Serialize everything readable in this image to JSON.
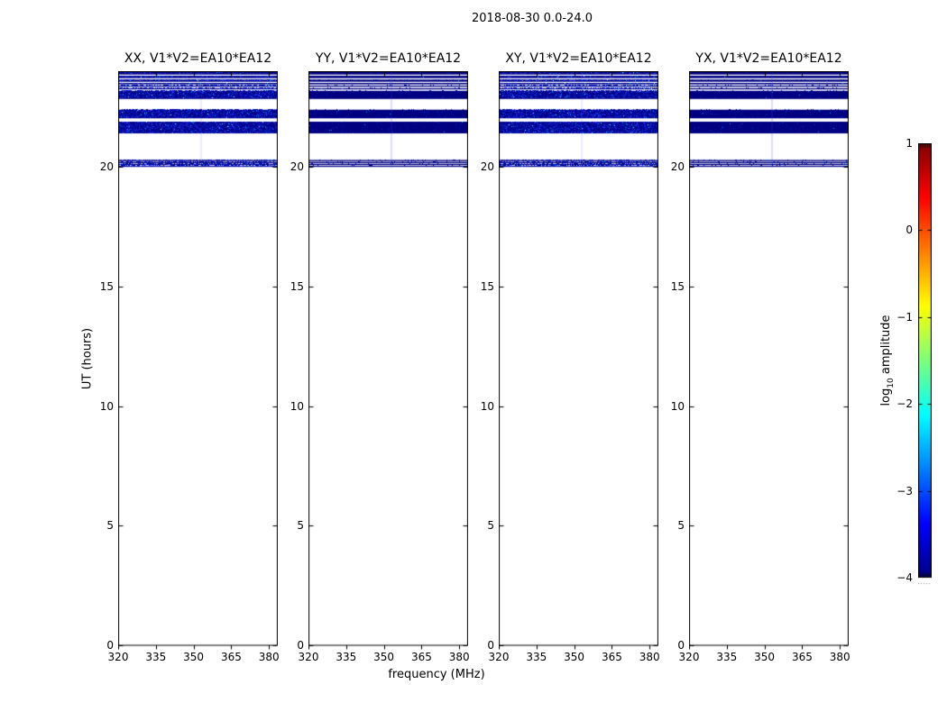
{
  "chart_data": {
    "type": "heatmap",
    "suptitle": "2018-08-30 0.0-24.0",
    "panels": [
      {
        "id": "XX",
        "title": "XX, V1*V2=EA10*EA12",
        "texture": "speckled"
      },
      {
        "id": "YY",
        "title": "YY, V1*V2=EA10*EA12",
        "texture": "solid"
      },
      {
        "id": "XY",
        "title": "XY, V1*V2=EA10*EA12",
        "texture": "speckled"
      },
      {
        "id": "YX",
        "title": "YX, V1*V2=EA10*EA12",
        "texture": "solid"
      }
    ],
    "xlabel": "frequency (MHz)",
    "ylabel": "UT (hours)",
    "x_range": [
      320,
      383.5
    ],
    "x_ticks": [
      320,
      335,
      350,
      365,
      380
    ],
    "x_tick_labels": [
      "320",
      "335",
      "350",
      "365",
      "380"
    ],
    "y_range": [
      0,
      24
    ],
    "y_ticks": [
      0,
      5,
      10,
      15,
      20
    ],
    "y_tick_labels": [
      "0",
      "5",
      "10",
      "15",
      "20"
    ],
    "grid": false,
    "legend": "colorbar-right",
    "bands_ut": [
      [
        23.86,
        24.0
      ],
      [
        23.71,
        23.81
      ],
      [
        23.56,
        23.65
      ],
      [
        23.45,
        23.51
      ],
      [
        23.35,
        23.4
      ],
      [
        23.24,
        23.29
      ],
      [
        22.84,
        23.18
      ],
      [
        22.03,
        22.39
      ],
      [
        21.4,
        21.89
      ],
      [
        20.24,
        20.29
      ],
      [
        20.16,
        20.21
      ],
      [
        20.08,
        20.13
      ],
      [
        20.0,
        20.05
      ]
    ],
    "band_value_note": "emission only between UT 20.0 and 24.0; log10 amplitude near -4 (dark blue) with speckle up to about -3; rest of plane empty (white)",
    "rfi_streak_mhz": 353,
    "colorbar": {
      "label_prefix": "log",
      "label_sub": "10",
      "label_suffix": " amplitude",
      "range": [
        -4,
        1
      ],
      "ticks": [
        1,
        0,
        -1,
        -2,
        -3,
        -4
      ],
      "tick_labels": [
        "1",
        "0",
        "−1",
        "−2",
        "−3",
        "−4"
      ],
      "colormap": "jet"
    },
    "colors": {
      "background": "#ffffff",
      "frame": "#000000",
      "band_base_speckled": "#000085",
      "band_base_solid": "#000080",
      "speckle_bright": "#3434f4",
      "speckle_cyan": "#00a2f2",
      "jet_stops_top_to_bottom": [
        "#800000",
        "#ff0000",
        "#ffff00",
        "#7dff7a",
        "#00ffff",
        "#0000ff",
        "#000080"
      ]
    }
  }
}
